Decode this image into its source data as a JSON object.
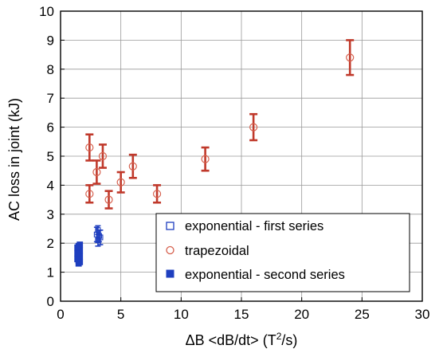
{
  "chart_data": {
    "type": "scatter",
    "xlabel": "ΔB <dB/dt> (T²/s)",
    "xlabel_parts": {
      "main": "ΔB <dB/dt> (T",
      "sup": "2",
      "tail": "/s)"
    },
    "ylabel": "AC loss in joint (kJ)",
    "xlim": [
      0,
      30
    ],
    "ylim": [
      0,
      10
    ],
    "x_ticks": [
      "0",
      "5",
      "10",
      "15",
      "20",
      "25",
      "30"
    ],
    "y_ticks": [
      "0",
      "1",
      "2",
      "3",
      "4",
      "5",
      "6",
      "7",
      "8",
      "9",
      "10"
    ],
    "grid": true,
    "legend_position": "bottom-right",
    "series": [
      {
        "name": "exponential - first series",
        "marker": "open-square",
        "color": "#1f3fbf",
        "points": [
          {
            "x": 3.0,
            "y": 2.3,
            "err": 0.25
          },
          {
            "x": 3.1,
            "y": 2.1,
            "err": 0.2
          },
          {
            "x": 3.2,
            "y": 2.25,
            "err": 0.2
          },
          {
            "x": 3.3,
            "y": 2.2,
            "err": 0.25
          },
          {
            "x": 3.1,
            "y": 2.45,
            "err": 0.15
          }
        ]
      },
      {
        "name": "trapezoidal",
        "marker": "open-circle",
        "color": "#d6604d",
        "points": [
          {
            "x": 2.4,
            "y": 5.3,
            "err": 0.45
          },
          {
            "x": 2.4,
            "y": 3.7,
            "err": 0.3
          },
          {
            "x": 3.0,
            "y": 4.45,
            "err": 0.4
          },
          {
            "x": 3.5,
            "y": 5.0,
            "err": 0.4
          },
          {
            "x": 4.0,
            "y": 3.5,
            "err": 0.3
          },
          {
            "x": 5.0,
            "y": 4.1,
            "err": 0.35
          },
          {
            "x": 6.0,
            "y": 4.65,
            "err": 0.4
          },
          {
            "x": 8.0,
            "y": 3.7,
            "err": 0.3
          },
          {
            "x": 12.0,
            "y": 4.9,
            "err": 0.4
          },
          {
            "x": 16.0,
            "y": 6.0,
            "err": 0.45
          },
          {
            "x": 24.0,
            "y": 8.4,
            "err": 0.6
          }
        ]
      },
      {
        "name": "exponential - second series",
        "marker": "filled-square",
        "color": "#1f3fbf",
        "points": [
          {
            "x": 1.5,
            "y": 1.3
          },
          {
            "x": 1.5,
            "y": 1.4
          },
          {
            "x": 1.5,
            "y": 1.5
          },
          {
            "x": 1.5,
            "y": 1.6
          },
          {
            "x": 1.5,
            "y": 1.7
          },
          {
            "x": 1.5,
            "y": 1.8
          },
          {
            "x": 1.5,
            "y": 1.9
          },
          {
            "x": 1.6,
            "y": 1.35
          },
          {
            "x": 1.6,
            "y": 1.55
          },
          {
            "x": 1.6,
            "y": 1.75
          },
          {
            "x": 1.6,
            "y": 1.95
          },
          {
            "x": 1.4,
            "y": 1.45
          },
          {
            "x": 1.4,
            "y": 1.65
          },
          {
            "x": 1.4,
            "y": 1.85
          }
        ]
      }
    ]
  },
  "colors": {
    "error_bar": "#c0392b",
    "grid": "#999999",
    "axis": "#000000"
  }
}
